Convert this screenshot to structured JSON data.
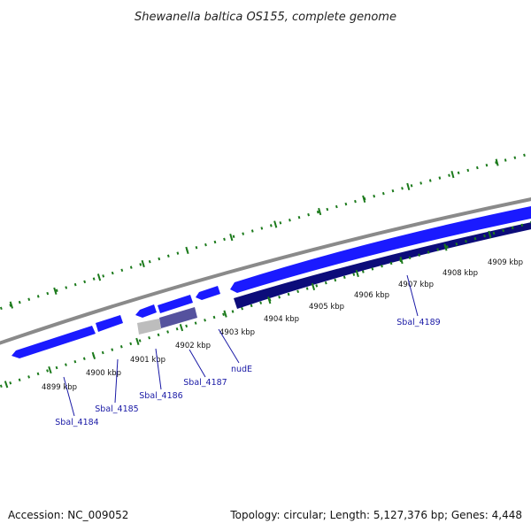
{
  "title": "Shewanella baltica OS155, complete genome",
  "footer": {
    "accession": "Accession: NC_009052",
    "summary": "Topology: circular; Length: 5,127,376 bp; Genes: 4,448"
  },
  "tick_labels": [
    "4899 kbp",
    "4900 kbp",
    "4901 kbp",
    "4902 kbp",
    "4903 kbp",
    "4904 kbp",
    "4905 kbp",
    "4906 kbp",
    "4907 kbp",
    "4908 kbp",
    "4909 kbp"
  ],
  "gene_labels": {
    "sbal_4184": "Sbal_4184",
    "sbal_4185": "Sbal_4185",
    "sbal_4186": "Sbal_4186",
    "sbal_4187": "Sbal_4187",
    "nude": "nudE",
    "sbal_4189": "Sbal_4189"
  },
  "colors": {
    "backbone": "#8a8a8a",
    "forward_gene": "#1a1aff",
    "reverse_gene": "#0c0c7a",
    "reverse_gene_light": "#55529e",
    "pseudo_gene": "#bdbdbd",
    "tick_marks": "#1b7a1b",
    "label_line": "#1a1aa6"
  }
}
